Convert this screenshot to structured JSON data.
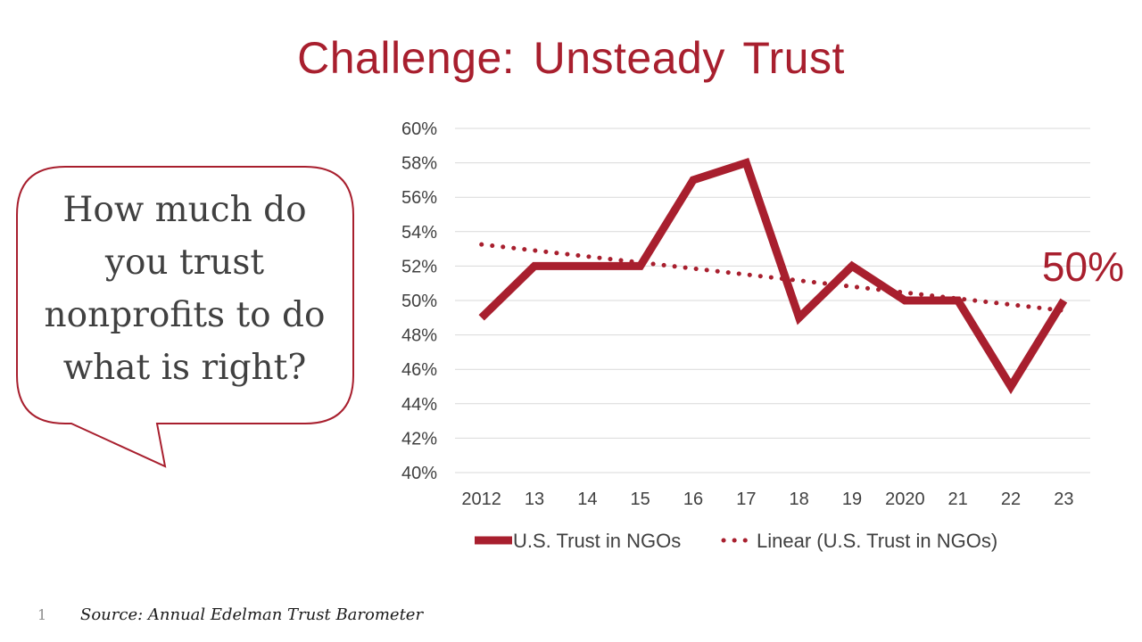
{
  "slide": {
    "title": "Challenge: Unsteady Trust",
    "bubble_lines": [
      "How much do",
      "you trust",
      "nonprofits to do",
      "what is right?"
    ],
    "page_number": "1",
    "source": "Source: Annual Edelman Trust Barometer"
  },
  "colors": {
    "accent": "#a81f2e",
    "grid": "#d9d9d9",
    "text": "#404040"
  },
  "chart_data": {
    "type": "line",
    "categories": [
      "2012",
      "13",
      "14",
      "15",
      "16",
      "17",
      "18",
      "19",
      "2020",
      "21",
      "22",
      "23"
    ],
    "series": [
      {
        "name": "U.S. Trust in NGOs",
        "values": [
          49,
          52,
          52,
          52,
          57,
          58,
          49,
          52,
          50,
          50,
          45,
          50
        ]
      }
    ],
    "trendline": {
      "name": "Linear (U.S. Trust in NGOs)",
      "type": "linear",
      "style": "dotted"
    },
    "ylim": [
      40,
      60
    ],
    "y_ticks": [
      40,
      42,
      44,
      46,
      48,
      50,
      52,
      54,
      56,
      58,
      60
    ],
    "y_tick_format": "percent",
    "grid": true,
    "legend": "bottom",
    "annotation": {
      "text": "50%",
      "category": "23"
    },
    "title": "",
    "xlabel": "",
    "ylabel": ""
  }
}
